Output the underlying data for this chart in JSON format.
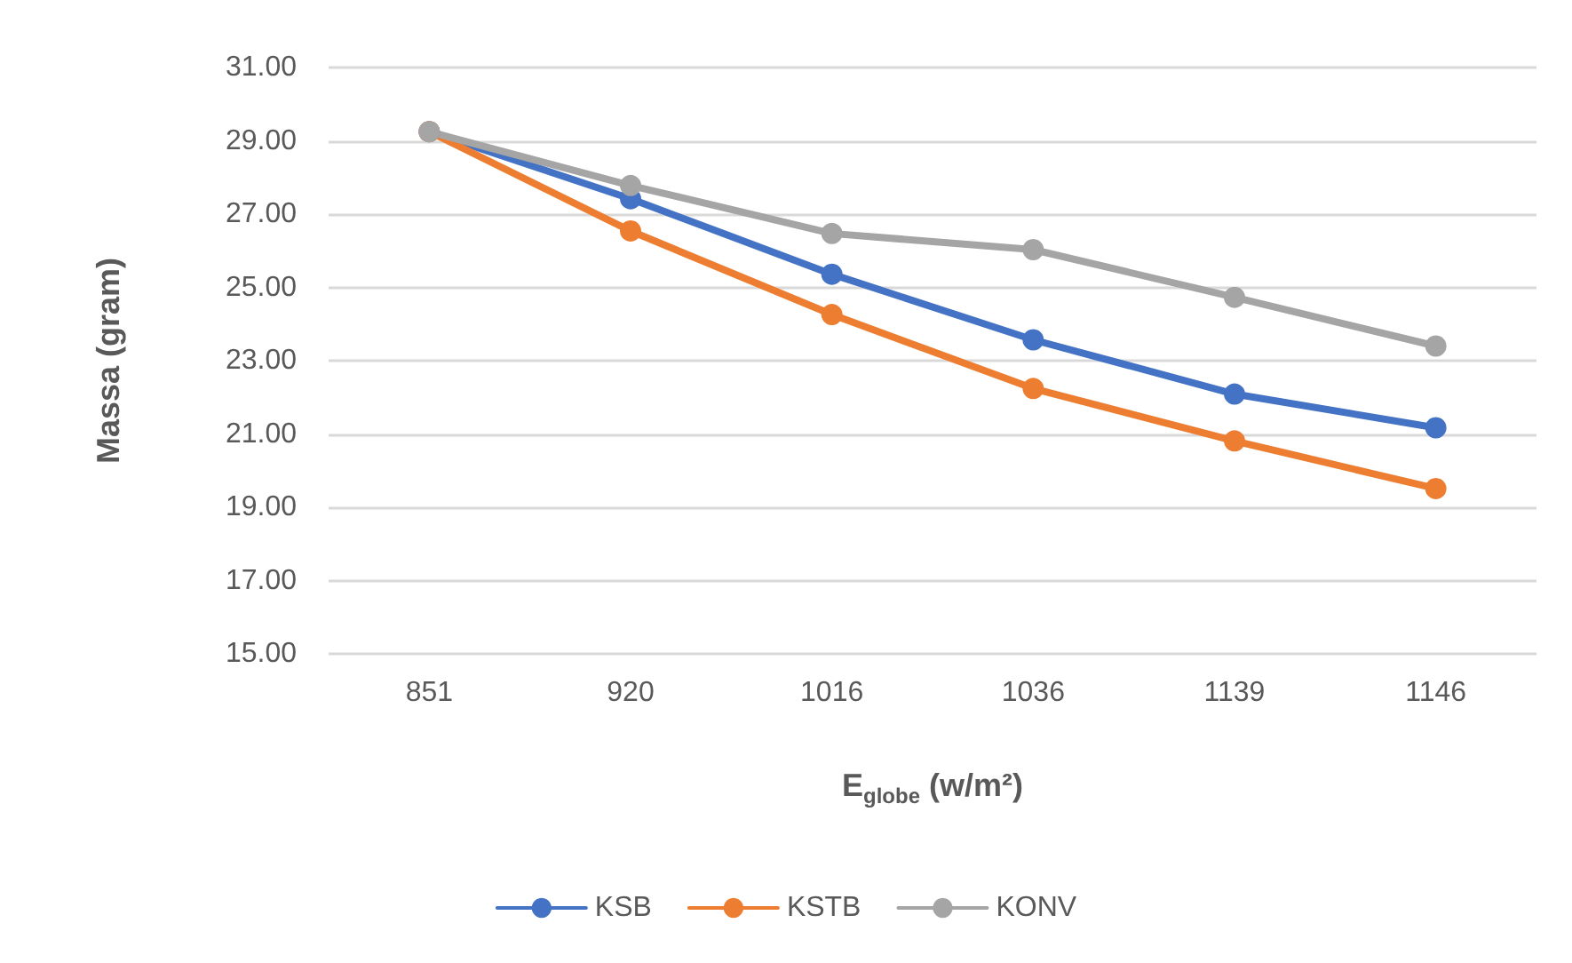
{
  "chart_data": {
    "type": "line",
    "xlabel": "E$_{globe}$ (w/m²)",
    "ylabel": "Massa (gram)",
    "categories": [
      "851",
      "920",
      "1016",
      "1036",
      "1139",
      "1146"
    ],
    "series": [
      {
        "name": "KSB",
        "color": "#4472c4",
        "values": [
          29.25,
          27.42,
          25.36,
          23.57,
          22.09,
          21.17
        ]
      },
      {
        "name": "KSTB",
        "color": "#ed7d31",
        "values": [
          29.25,
          26.54,
          24.26,
          22.24,
          20.81,
          19.51
        ]
      },
      {
        "name": "KONV",
        "color": "#a5a5a5",
        "values": [
          29.25,
          27.78,
          26.47,
          26.03,
          24.73,
          23.4
        ]
      }
    ],
    "ylim": [
      15,
      31
    ],
    "yticks": [
      {
        "value": 15,
        "label": "15.00"
      },
      {
        "value": 17,
        "label": "17.00"
      },
      {
        "value": 19,
        "label": "19.00"
      },
      {
        "value": 21,
        "label": "21.00"
      },
      {
        "value": 23,
        "label": "23.00"
      },
      {
        "value": 25,
        "label": "25.00"
      },
      {
        "value": 27,
        "label": "27.00"
      },
      {
        "value": 29,
        "label": "29.00"
      },
      {
        "value": 31,
        "label": "31.00"
      }
    ],
    "grid": "y",
    "legend": "bottom",
    "marker": "circle",
    "line_style": "solid"
  }
}
